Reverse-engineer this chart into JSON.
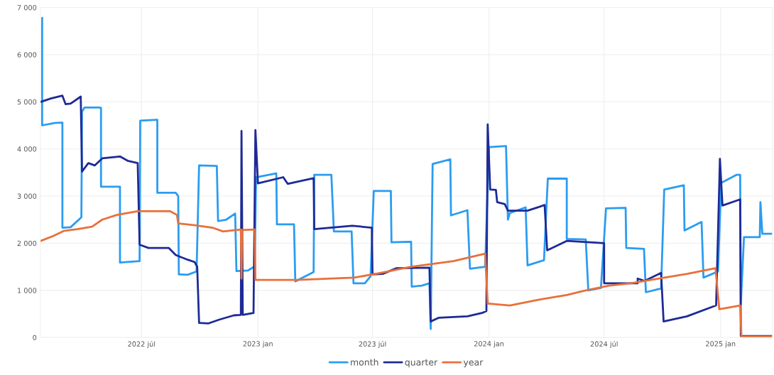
{
  "chart_data": {
    "type": "line",
    "xlim": [
      "2022-01-22",
      "2025-03-24"
    ],
    "xticks": [
      {
        "value": "2022-07-01",
        "label": "2022 júl"
      },
      {
        "value": "2023-01-01",
        "label": "2023 jan"
      },
      {
        "value": "2023-07-01",
        "label": "2023 júl"
      },
      {
        "value": "2024-01-01",
        "label": "2024 jan"
      },
      {
        "value": "2024-07-01",
        "label": "2024 júl"
      },
      {
        "value": "2025-01-01",
        "label": "2025 jan"
      }
    ],
    "ylim": [
      0,
      7000
    ],
    "yticks": [
      0,
      {
        "value": 1000,
        "label": "1 000"
      },
      {
        "value": 2000,
        "label": "2 000"
      },
      {
        "value": 3000,
        "label": "3 000"
      },
      {
        "value": 4000,
        "label": "4 000"
      },
      {
        "value": 5000,
        "label": "5 000"
      },
      {
        "value": 6000,
        "label": "6 000"
      },
      {
        "value": 7000,
        "label": "7 000"
      }
    ],
    "grid": true,
    "legend": "bottom",
    "marker": "none",
    "line_style": "solid",
    "series": [
      {
        "name": "month",
        "color": "#2b9cf0",
        "x": [
          "2022-01-25",
          "2022-01-25",
          "2022-02-14",
          "2022-02-26",
          "2022-02-26",
          "2022-03-11",
          "2022-03-28",
          "2022-03-29",
          "2022-04-02",
          "2022-04-25",
          "2022-04-28",
          "2022-04-28",
          "2022-05-28",
          "2022-05-28",
          "2022-06-28",
          "2022-06-29",
          "2022-07-26",
          "2022-07-26",
          "2022-08-24",
          "2022-08-28",
          "2022-08-29",
          "2022-09-12",
          "2022-09-26",
          "2022-09-30",
          "2022-10-28",
          "2022-10-30",
          "2022-11-12",
          "2022-11-26",
          "2022-11-28",
          "2022-12-16",
          "2022-12-27",
          "2022-12-29",
          "2023-01-30",
          "2023-01-31",
          "2023-02-27",
          "2023-03-01",
          "2023-03-30",
          "2023-03-31",
          "2023-04-27",
          "2023-05-01",
          "2023-05-29",
          "2023-06-01",
          "2023-06-19",
          "2023-06-28",
          "2023-07-03",
          "2023-07-30",
          "2023-07-31",
          "2023-08-31",
          "2023-09-01",
          "2023-09-17",
          "2023-09-29",
          "2023-10-01",
          "2023-10-04",
          "2023-11-01",
          "2023-11-02",
          "2023-11-28",
          "2023-12-02",
          "2023-12-26",
          "2024-01-01",
          "2024-01-28",
          "2024-01-31",
          "2024-02-03",
          "2024-02-28",
          "2024-03-02",
          "2024-03-28",
          "2024-04-03",
          "2024-05-03",
          "2024-05-03",
          "2024-06-02",
          "2024-06-06",
          "2024-06-26",
          "2024-07-04",
          "2024-08-04",
          "2024-08-05",
          "2024-09-02",
          "2024-09-05",
          "2024-09-29",
          "2024-10-04",
          "2024-11-04",
          "2024-11-05",
          "2024-12-02",
          "2024-12-05",
          "2024-12-28",
          "2025-01-02",
          "2025-01-26",
          "2025-02-01",
          "2025-02-02",
          "2025-02-07",
          "2025-03-04",
          "2025-03-05",
          "2025-03-08",
          "2025-03-24"
        ],
        "values": [
          6780,
          4500,
          4550,
          4560,
          2330,
          2340,
          2550,
          4790,
          4880,
          4880,
          4870,
          3200,
          3200,
          1590,
          1620,
          4600,
          4620,
          3070,
          3070,
          3000,
          1340,
          1330,
          1400,
          3650,
          3640,
          2470,
          2500,
          2630,
          1410,
          1420,
          1510,
          3400,
          3480,
          2400,
          2400,
          1190,
          1390,
          3450,
          3450,
          2250,
          2250,
          1150,
          1150,
          1300,
          3110,
          3110,
          2020,
          2030,
          1080,
          1100,
          1150,
          180,
          3680,
          3780,
          2590,
          2700,
          1460,
          1500,
          4040,
          4060,
          2500,
          2640,
          2760,
          1530,
          1640,
          3370,
          3370,
          2090,
          2080,
          1000,
          1050,
          2740,
          2750,
          1900,
          1880,
          960,
          1040,
          3140,
          3230,
          2270,
          2450,
          1270,
          1400,
          3280,
          3450,
          3450,
          700,
          2130,
          2130,
          2870,
          2200,
          2200
        ]
      },
      {
        "name": "quarter",
        "color": "#1e2a96",
        "x": [
          "2022-01-23",
          "2022-02-08",
          "2022-02-26",
          "2022-03-03",
          "2022-03-11",
          "2022-03-27",
          "2022-03-29",
          "2022-04-08",
          "2022-04-18",
          "2022-04-30",
          "2022-05-28",
          "2022-06-09",
          "2022-06-25",
          "2022-06-28",
          "2022-07-12",
          "2022-08-13",
          "2022-08-24",
          "2022-09-12",
          "2022-09-23",
          "2022-09-27",
          "2022-09-30",
          "2022-10-15",
          "2022-11-01",
          "2022-11-24",
          "2022-12-05",
          "2022-12-06",
          "2022-12-08",
          "2022-12-25",
          "2022-12-28",
          "2023-01-01",
          "2023-02-10",
          "2023-02-17",
          "2023-03-30",
          "2023-03-31",
          "2023-05-30",
          "2023-06-30",
          "2023-07-01",
          "2023-07-17",
          "2023-08-08",
          "2023-09-29",
          "2023-10-01",
          "2023-10-14",
          "2023-11-28",
          "2023-12-21",
          "2023-12-28",
          "2023-12-30",
          "2024-01-03",
          "2024-01-12",
          "2024-01-14",
          "2024-01-26",
          "2024-01-31",
          "2024-03-02",
          "2024-03-29",
          "2024-04-02",
          "2024-05-03",
          "2024-07-01",
          "2024-07-01",
          "2024-08-23",
          "2024-08-23",
          "2024-09-03",
          "2024-09-29",
          "2024-10-03",
          "2024-11-09",
          "2024-12-25",
          "2024-12-31",
          "2025-01-04",
          "2025-02-01",
          "2025-02-02",
          "2025-03-24"
        ],
        "values": [
          5000,
          5070,
          5130,
          4950,
          4960,
          5110,
          3520,
          3700,
          3650,
          3800,
          3840,
          3750,
          3700,
          1970,
          1900,
          1900,
          1750,
          1650,
          1600,
          1500,
          310,
          300,
          380,
          470,
          480,
          4380,
          480,
          520,
          4400,
          3270,
          3400,
          3260,
          3380,
          2300,
          2370,
          2330,
          1340,
          1350,
          1470,
          1480,
          340,
          420,
          450,
          520,
          560,
          4520,
          3140,
          3130,
          2870,
          2830,
          2690,
          2690,
          2810,
          1850,
          2050,
          2000,
          1150,
          1150,
          1250,
          1200,
          1370,
          340,
          450,
          680,
          3790,
          2800,
          2930,
          30,
          30
        ]
      },
      {
        "name": "year",
        "color": "#e8703a",
        "x": [
          "2022-01-23",
          "2022-02-11",
          "2022-02-28",
          "2022-03-22",
          "2022-04-14",
          "2022-04-30",
          "2022-05-23",
          "2022-06-25",
          "2022-08-15",
          "2022-08-26",
          "2022-08-28",
          "2022-09-23",
          "2022-10-21",
          "2022-11-07",
          "2022-12-05",
          "2022-12-06",
          "2022-12-07",
          "2022-12-27",
          "2022-12-28",
          "2023-03-04",
          "2023-06-02",
          "2023-07-06",
          "2023-08-31",
          "2023-10-14",
          "2023-11-06",
          "2023-12-26",
          "2023-12-30",
          "2024-02-03",
          "2024-03-19",
          "2024-05-03",
          "2024-06-02",
          "2024-07-09",
          "2024-08-12",
          "2024-09-26",
          "2024-11-09",
          "2024-12-24",
          "2024-12-30",
          "2025-02-01",
          "2025-02-03",
          "2025-03-24"
        ],
        "values": [
          2050,
          2150,
          2260,
          2300,
          2350,
          2500,
          2600,
          2680,
          2680,
          2600,
          2420,
          2380,
          2330,
          2250,
          2290,
          1250,
          2280,
          2290,
          1220,
          1220,
          1270,
          1350,
          1500,
          1580,
          1620,
          1780,
          720,
          680,
          800,
          900,
          1000,
          1100,
          1150,
          1250,
          1350,
          1470,
          600,
          680,
          20,
          20
        ]
      }
    ]
  }
}
